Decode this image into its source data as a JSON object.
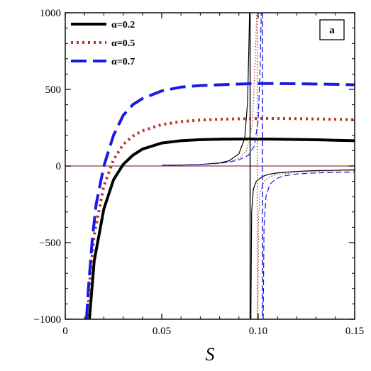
{
  "chart_data": {
    "type": "line",
    "title": "",
    "panel_label": "a",
    "xlabel": "S",
    "ylabel": "",
    "xlim": [
      0,
      0.15
    ],
    "ylim": [
      -1000,
      1000
    ],
    "x_ticks": [
      0,
      0.05,
      0.1,
      0.15
    ],
    "x_tick_labels": [
      "0",
      "0.05",
      "0.10",
      "0.15"
    ],
    "y_ticks": [
      -1000,
      -500,
      0,
      500,
      1000
    ],
    "y_tick_labels": [
      "−1000",
      "−500",
      "0",
      "500",
      "1000"
    ],
    "grid": false,
    "legend_position": "top-left",
    "colors": {
      "alpha_0_2": "#000000",
      "alpha_0_5": "#b5372a",
      "alpha_0_7": "#1a1ae6",
      "zero_line": "#8b3a3a"
    },
    "series": [
      {
        "name": "α=0.2",
        "style": "solid",
        "color": "#000000",
        "thick": {
          "x": [
            0.0125,
            0.015,
            0.02,
            0.025,
            0.03,
            0.035,
            0.04,
            0.05,
            0.06,
            0.07,
            0.08,
            0.09,
            0.1,
            0.11,
            0.12,
            0.13,
            0.14,
            0.15
          ],
          "y": [
            -1000,
            -620,
            -280,
            -90,
            10,
            70,
            110,
            150,
            165,
            172,
            175,
            176,
            176,
            175,
            173,
            171,
            168,
            165
          ]
        },
        "thin": {
          "asymptote": 0.0958,
          "left": {
            "x": [
              0.05,
              0.06,
              0.07,
              0.08,
              0.085,
              0.09,
              0.093,
              0.0945,
              0.0952,
              0.0955
            ],
            "y": [
              5,
              6,
              10,
              20,
              35,
              80,
              180,
              420,
              800,
              1000
            ]
          },
          "right": {
            "x": [
              0.0962,
              0.0966,
              0.0975,
              0.099,
              0.102,
              0.105,
              0.11,
              0.12,
              0.13,
              0.14,
              0.15
            ],
            "y": [
              -1000,
              -300,
              -150,
              -100,
              -70,
              -55,
              -45,
              -35,
              -30,
              -28,
              -25
            ]
          }
        }
      },
      {
        "name": "α=0.5",
        "style": "dotted",
        "color": "#b5372a",
        "thick": {
          "x": [
            0.0115,
            0.013,
            0.015,
            0.02,
            0.025,
            0.03,
            0.035,
            0.04,
            0.05,
            0.06,
            0.07,
            0.08,
            0.09,
            0.1,
            0.11,
            0.12,
            0.13,
            0.14,
            0.15
          ],
          "y": [
            -1000,
            -700,
            -450,
            -130,
            40,
            140,
            195,
            230,
            270,
            290,
            300,
            305,
            308,
            310,
            310,
            309,
            307,
            305,
            302
          ]
        },
        "thin": {
          "asymptote": 0.0995,
          "left": {
            "x": [
              0.05,
              0.06,
              0.07,
              0.08,
              0.085,
              0.09,
              0.094,
              0.097,
              0.0985,
              0.0992
            ],
            "y": [
              5,
              6,
              10,
              18,
              28,
              50,
              100,
              280,
              700,
              1000
            ]
          },
          "right": {
            "x": [
              0.0998,
              0.1002,
              0.101,
              0.103,
              0.106,
              0.11,
              0.12,
              0.13,
              0.14,
              0.15
            ],
            "y": [
              -1000,
              -350,
              -170,
              -100,
              -70,
              -55,
              -40,
              -35,
              -32,
              -30
            ]
          }
        }
      },
      {
        "name": "α=0.7",
        "style": "dashed",
        "color": "#1a1ae6",
        "thick": {
          "x": [
            0.011,
            0.012,
            0.014,
            0.016,
            0.02,
            0.025,
            0.03,
            0.035,
            0.04,
            0.05,
            0.06,
            0.07,
            0.08,
            0.09,
            0.1,
            0.11,
            0.12,
            0.13,
            0.14,
            0.15
          ],
          "y": [
            -1000,
            -800,
            -480,
            -250,
            0,
            200,
            330,
            400,
            440,
            490,
            515,
            525,
            530,
            535,
            538,
            538,
            537,
            535,
            533,
            530
          ]
        },
        "thin": {
          "asymptote": 0.1022,
          "left": {
            "x": [
              0.05,
              0.06,
              0.07,
              0.08,
              0.085,
              0.09,
              0.095,
              0.098,
              0.1,
              0.101,
              0.1016
            ],
            "y": [
              5,
              6,
              10,
              18,
              25,
              40,
              70,
              130,
              300,
              650,
              1000
            ]
          },
          "right": {
            "x": [
              0.1026,
              0.103,
              0.104,
              0.106,
              0.109,
              0.113,
              0.12,
              0.13,
              0.14,
              0.15
            ],
            "y": [
              -1000,
              -400,
              -200,
              -120,
              -85,
              -65,
              -52,
              -45,
              -42,
              -40
            ]
          }
        }
      }
    ]
  }
}
